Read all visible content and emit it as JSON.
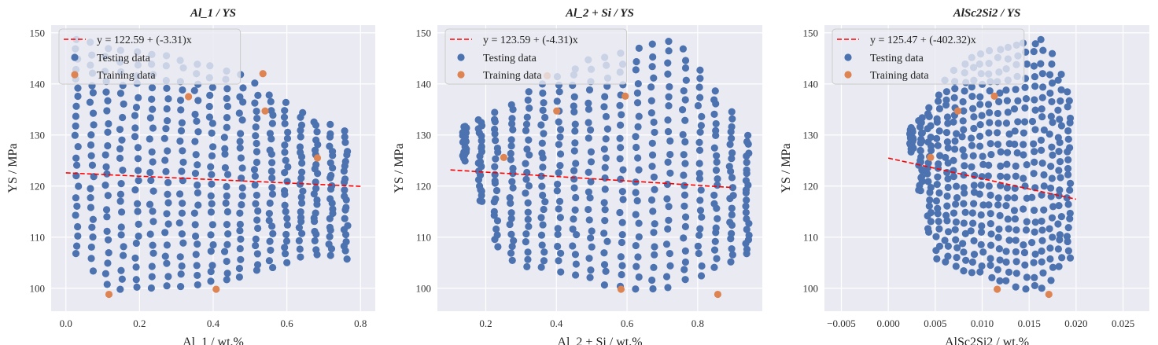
{
  "figure": {
    "colors": {
      "testing": "#4c72b0",
      "training": "#dd8452",
      "fit": "#ff0000",
      "panel_bg": "#eaeaf2",
      "grid": "#ffffff"
    },
    "legend_labels": {
      "testing": "Testing data",
      "training": "Training data"
    }
  },
  "chart_data": [
    {
      "type": "scatter",
      "title": "Al_1 / YS",
      "xlabel": "Al_1 / wt.%",
      "ylabel": "YS / MPa",
      "xlim": [
        -0.04,
        0.84
      ],
      "ylim": [
        95.5,
        151.5
      ],
      "xticks": [
        0.0,
        0.2,
        0.4,
        0.6,
        0.8
      ],
      "xtick_labels": [
        "0.0",
        "0.2",
        "0.4",
        "0.6",
        "0.8"
      ],
      "yticks": [
        100,
        110,
        120,
        130,
        140,
        150
      ],
      "ytick_labels": [
        "100",
        "110",
        "120",
        "130",
        "140",
        "150"
      ],
      "grid": true,
      "legend_position": "upper-left",
      "fit": {
        "label": "y = 122.59 + (-3.31)x",
        "intercept": 122.59,
        "slope": -3.31,
        "x_range": [
          0.0,
          0.8
        ]
      },
      "testing": {
        "x_range": [
          0.03,
          0.76
        ],
        "y_min": [
          106.5,
          99.5,
          100.5,
          100.5,
          101.5,
          104,
          107,
          106
        ],
        "y_max": [
          149,
          146.5,
          145.5,
          144.5,
          142.5,
          138.5,
          133.5,
          130.5
        ],
        "n_columns": 19,
        "n_rows": 23
      },
      "training": {
        "x": [
          0.117,
          0.333,
          0.408,
          0.535,
          0.541,
          0.683
        ],
        "y": [
          98.8,
          137.5,
          99.8,
          142.0,
          134.7,
          125.5
        ]
      }
    },
    {
      "type": "scatter",
      "title": "Al_2 + Si / YS",
      "xlabel": "Al_2 + Si / wt.%",
      "ylabel": "YS / MPa",
      "xlim": [
        0.063,
        0.983
      ],
      "ylim": [
        95.5,
        151.5
      ],
      "xticks": [
        0.2,
        0.4,
        0.6,
        0.8
      ],
      "xtick_labels": [
        "0.2",
        "0.4",
        "0.6",
        "0.8"
      ],
      "yticks": [
        100,
        110,
        120,
        130,
        140,
        150
      ],
      "ytick_labels": [
        "100",
        "110",
        "120",
        "130",
        "140",
        "150"
      ],
      "grid": true,
      "legend_position": "upper-left",
      "fit": {
        "label": "y = 123.59 + (-4.31)x",
        "intercept": 123.59,
        "slope": -4.31,
        "x_range": [
          0.1,
          0.9
        ]
      },
      "testing": {
        "x_range": [
          0.14,
          0.94
        ],
        "y_min": [
          125,
          106,
          104,
          103,
          101,
          99.5,
          100.5,
          104,
          106.5
        ],
        "y_max": [
          132,
          135,
          139,
          143,
          145.5,
          147,
          149,
          140,
          130
        ],
        "n_columns": 19,
        "n_rows": 23
      },
      "training": {
        "x": [
          0.251,
          0.374,
          0.401,
          0.583,
          0.595,
          0.857
        ],
        "y": [
          125.6,
          141.6,
          134.7,
          99.8,
          137.6,
          98.8
        ]
      }
    },
    {
      "type": "scatter",
      "title": "AlSc2Si2 / YS",
      "xlabel": "AlSc2Si2 / wt.%",
      "ylabel": "YS / MPa",
      "xlim": [
        -0.0068,
        0.0278
      ],
      "ylim": [
        95.5,
        151.5
      ],
      "xticks": [
        -0.005,
        0.0,
        0.005,
        0.01,
        0.015,
        0.02,
        0.025
      ],
      "xtick_labels": [
        "−0.005",
        "0.000",
        "0.005",
        "0.010",
        "0.015",
        "0.020",
        "0.025"
      ],
      "yticks": [
        100,
        110,
        120,
        130,
        140,
        150
      ],
      "ytick_labels": [
        "100",
        "110",
        "120",
        "130",
        "140",
        "150"
      ],
      "grid": true,
      "legend_position": "upper-left",
      "fit": {
        "label": "y = 125.47 + (-402.32)x",
        "intercept": 125.47,
        "slope": -402.32,
        "x_range": [
          0.0,
          0.02
        ]
      },
      "testing": {
        "x_range": [
          0.0025,
          0.0192
        ],
        "y_min": [
          127,
          106,
          104,
          103,
          101.5,
          100,
          100.5,
          106
        ],
        "y_max": [
          131,
          137,
          143,
          145.5,
          147,
          148,
          148.5,
          138
        ],
        "n_columns": 19,
        "n_rows": 23
      },
      "training": {
        "x": [
          0.0045,
          0.0074,
          0.0113,
          0.0116,
          0.0171
        ],
        "y": [
          125.6,
          134.7,
          137.6,
          99.8,
          98.8
        ]
      }
    }
  ]
}
